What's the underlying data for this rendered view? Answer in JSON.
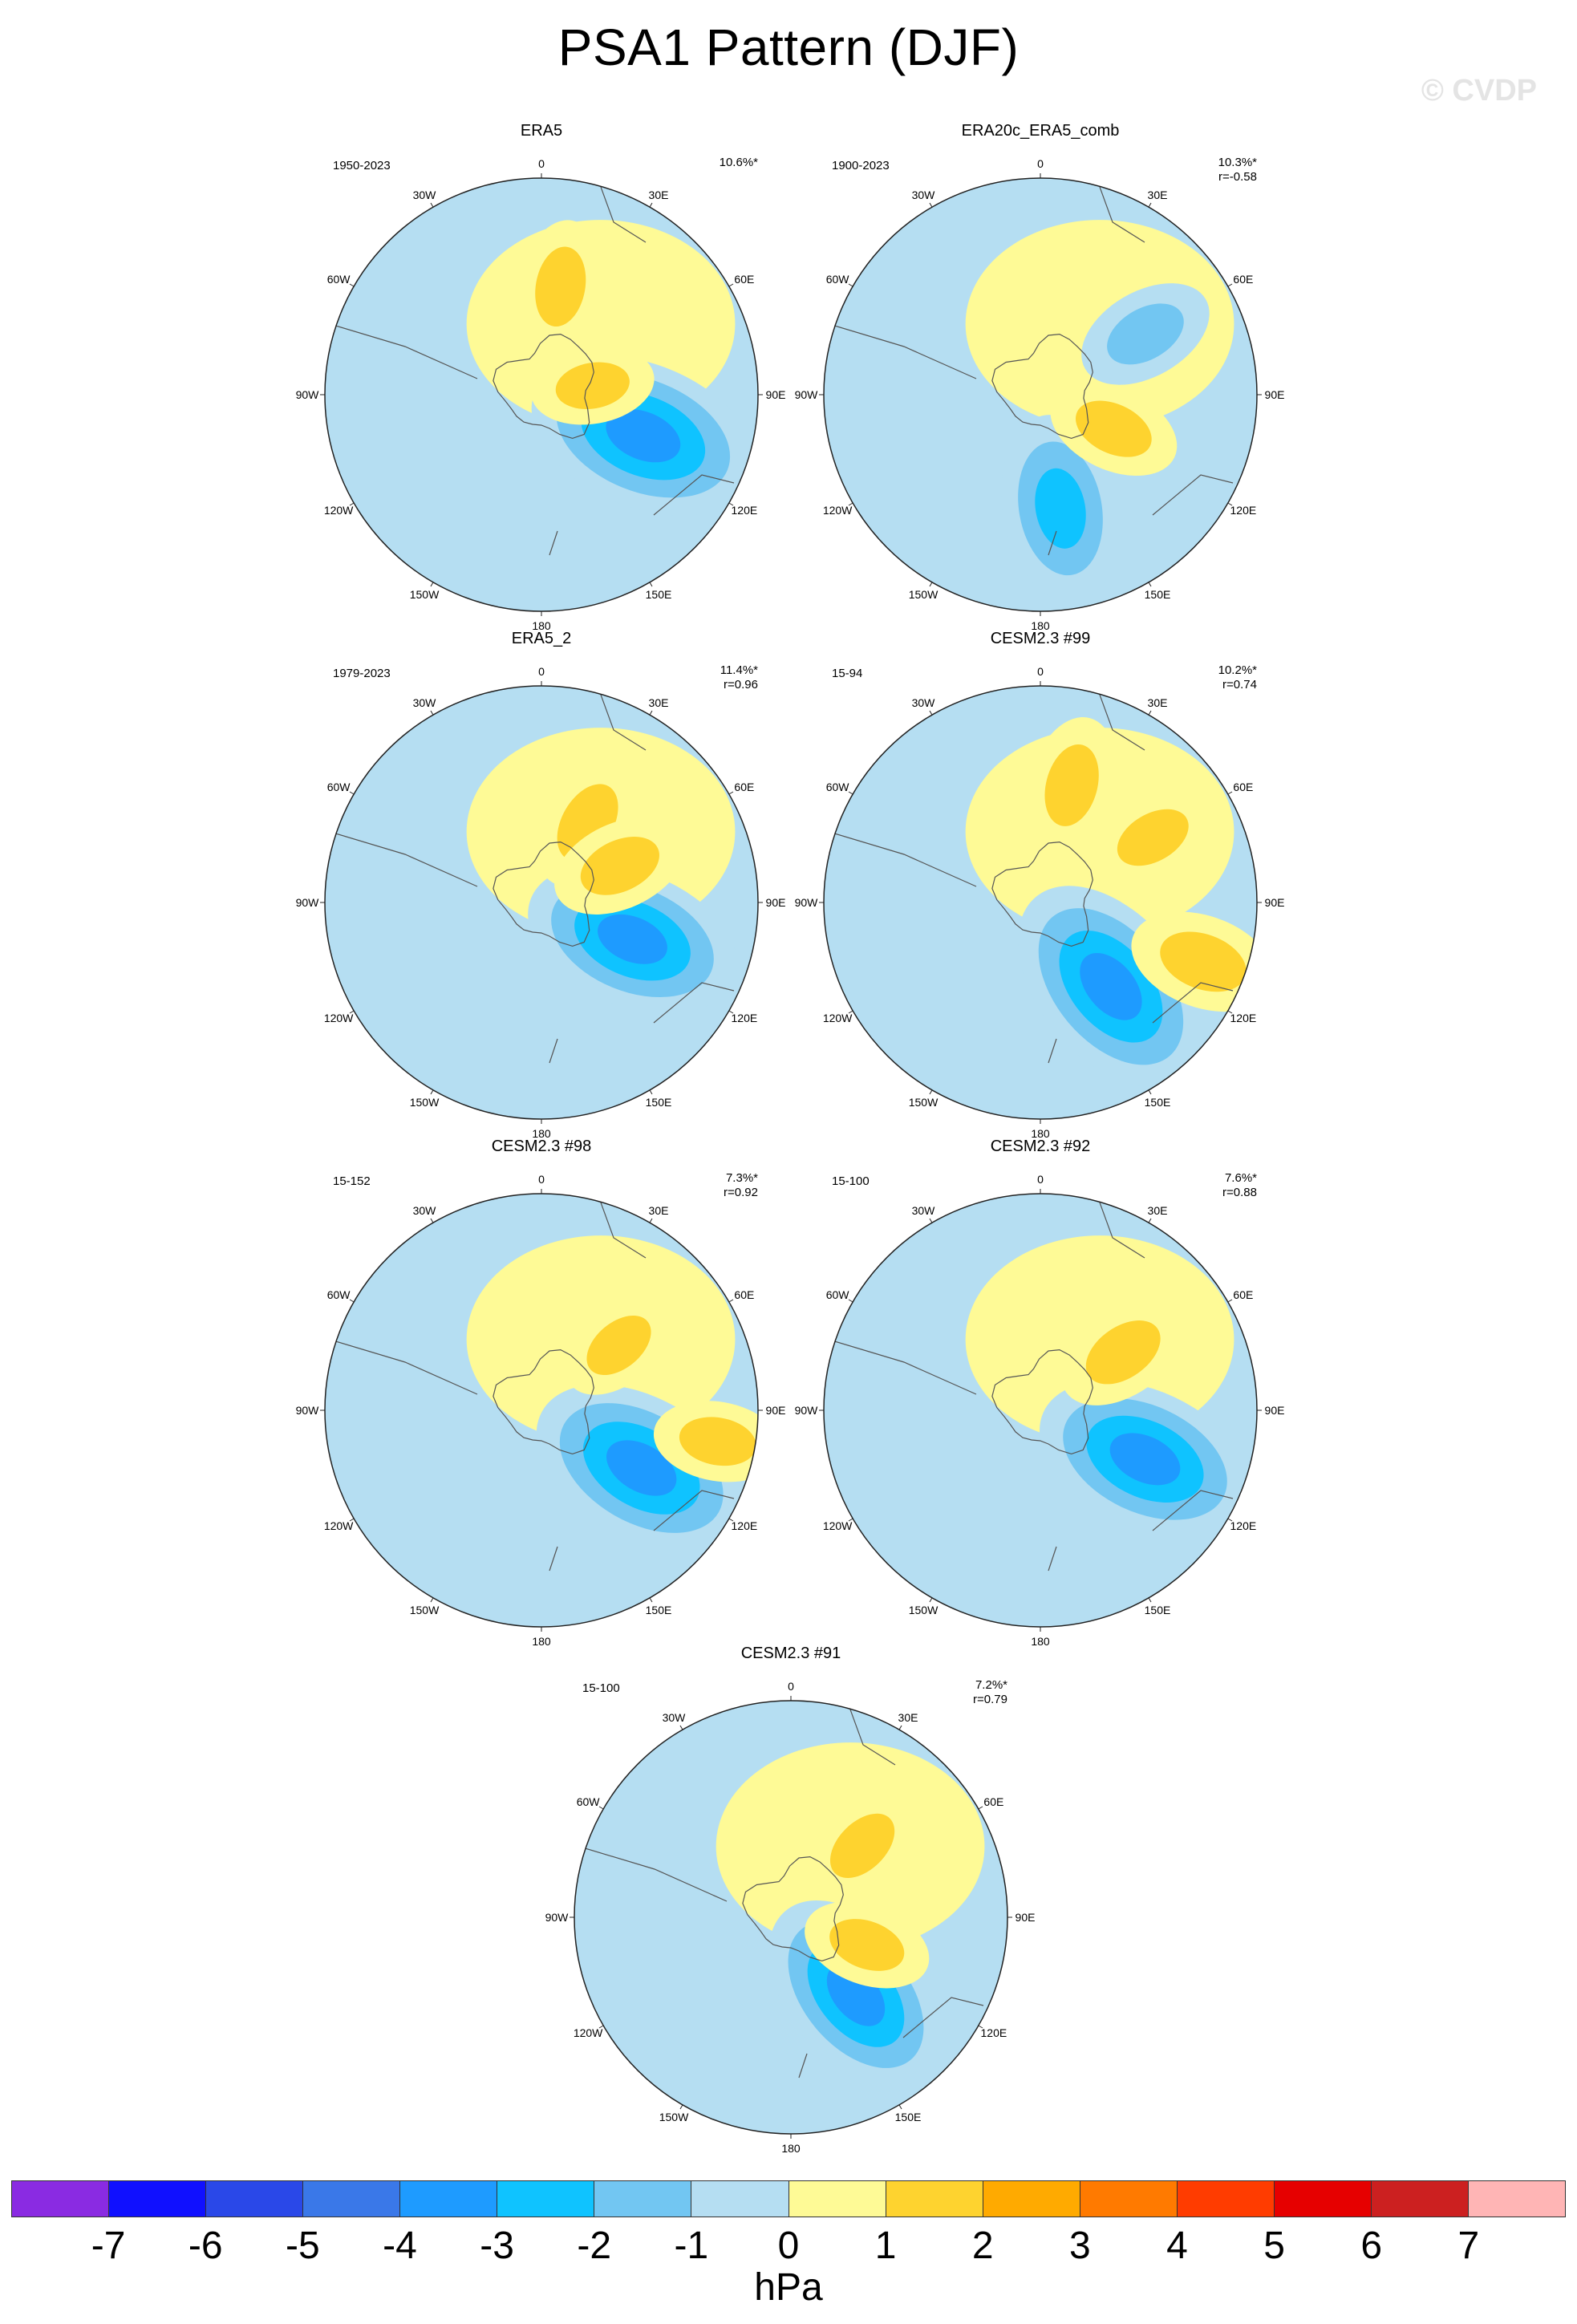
{
  "figure": {
    "title": "PSA1 Pattern (DJF)",
    "watermark": "© CVDP",
    "units": "hPa"
  },
  "longitude_labels": [
    "0",
    "30E",
    "60E",
    "90E",
    "120E",
    "150E",
    "180",
    "150W",
    "120W",
    "90W",
    "60W",
    "30W"
  ],
  "panels": [
    {
      "title": "ERA5",
      "period": "1950-2023",
      "pct_variance": "10.6%*",
      "pattern_corr": "",
      "features": [
        {
          "lon": 112,
          "lat": -52,
          "value": -3.5
        },
        {
          "lon": 10,
          "lat": -52,
          "value": 1.5
        },
        {
          "lon": 80,
          "lat": -72,
          "value": 1.3
        }
      ]
    },
    {
      "title": "ERA20c_ERA5_comb",
      "period": "1900-2023",
      "pct_variance": "10.3%*",
      "pattern_corr": "r=-0.58",
      "features": [
        {
          "lon": 170,
          "lat": -50,
          "value": -2.6
        },
        {
          "lon": 115,
          "lat": -62,
          "value": 1.5
        },
        {
          "lon": 60,
          "lat": -48,
          "value": -1.6
        }
      ]
    },
    {
      "title": "ERA5_2",
      "period": "1979-2023",
      "pct_variance": "11.4%*",
      "pattern_corr": "r=0.96",
      "features": [
        {
          "lon": 112,
          "lat": -56,
          "value": -3.2
        },
        {
          "lon": 30,
          "lat": -58,
          "value": 1.6
        },
        {
          "lon": 65,
          "lat": -60,
          "value": 1.6
        }
      ]
    },
    {
      "title": "CESM2.3 #99",
      "period": "15-94",
      "pct_variance": "10.2%*",
      "pattern_corr": "r=0.74",
      "features": [
        {
          "lon": 140,
          "lat": -52,
          "value": -3.5
        },
        {
          "lon": 15,
          "lat": -48,
          "value": 1.6
        },
        {
          "lon": 110,
          "lat": -30,
          "value": 1.8
        },
        {
          "lon": 60,
          "lat": -45,
          "value": 1.4
        }
      ]
    },
    {
      "title": "CESM2.3 #98",
      "period": "15-152",
      "pct_variance": "7.3%*",
      "pattern_corr": "r=0.92",
      "features": [
        {
          "lon": 120,
          "lat": -50,
          "value": -3.4
        },
        {
          "lon": 100,
          "lat": -28,
          "value": 1.4
        },
        {
          "lon": 50,
          "lat": -55,
          "value": 1.3
        }
      ]
    },
    {
      "title": "CESM2.3 #92",
      "period": "15-100",
      "pct_variance": "7.6%*",
      "pattern_corr": "r=0.88",
      "features": [
        {
          "lon": 115,
          "lat": -50,
          "value": -3.3
        },
        {
          "lon": 55,
          "lat": -55,
          "value": 1.6
        }
      ]
    },
    {
      "title": "CESM2.3 #91",
      "period": "15-100",
      "pct_variance": "7.2%*",
      "pattern_corr": "r=0.79",
      "features": [
        {
          "lon": 140,
          "lat": -55,
          "value": -3.2
        },
        {
          "lon": 45,
          "lat": -55,
          "value": 1.4
        },
        {
          "lon": 110,
          "lat": -62,
          "value": 1.4
        }
      ]
    }
  ],
  "colorbar": {
    "colors": [
      "#8a2be2",
      "#1010ff",
      "#2a48e8",
      "#3a78e8",
      "#1e9bff",
      "#0fc3ff",
      "#72c6f2",
      "#b5def2",
      "#fefa96",
      "#fed32f",
      "#ffaa00",
      "#ff7a00",
      "#ff3c00",
      "#e60000",
      "#cc2020",
      "#ffb5b5"
    ],
    "labels": [
      "-7",
      "-6",
      "-5",
      "-4",
      "-3",
      "-2",
      "-1",
      "0",
      "1",
      "2",
      "3",
      "4",
      "5",
      "6",
      "7"
    ]
  }
}
